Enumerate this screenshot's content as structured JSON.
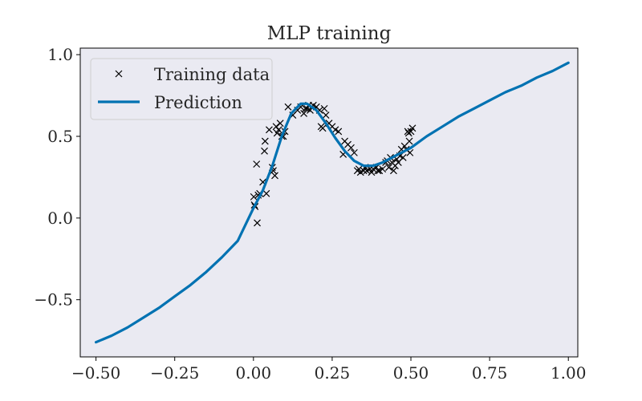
{
  "chart_data": {
    "type": "scatter",
    "title": "MLP training",
    "xlabel": "",
    "ylabel": "",
    "xlim": [
      -0.55,
      1.03
    ],
    "ylim": [
      -0.85,
      1.04
    ],
    "xticks": [
      -0.5,
      -0.25,
      0.0,
      0.25,
      0.5,
      0.75,
      1.0
    ],
    "xtick_labels": [
      "−0.50",
      "−0.25",
      "0.00",
      "0.25",
      "0.50",
      "0.75",
      "1.00"
    ],
    "yticks": [
      -0.5,
      0.0,
      0.5,
      1.0
    ],
    "ytick_labels": [
      "−0.5",
      "0.0",
      "0.5",
      "1.0"
    ],
    "grid": false,
    "legend_position": "top-left",
    "colors": {
      "background": "#eaeaf2",
      "prediction": "#0072b2",
      "training": "#000000"
    },
    "series": [
      {
        "name": "Training data",
        "kind": "scatter",
        "marker": "x",
        "points": [
          [
            0.001,
            0.13
          ],
          [
            0.003,
            0.08
          ],
          [
            0.005,
            0.07
          ],
          [
            0.01,
            0.33
          ],
          [
            0.012,
            -0.03
          ],
          [
            0.015,
            0.14
          ],
          [
            0.02,
            0.15
          ],
          [
            0.03,
            0.22
          ],
          [
            0.035,
            0.41
          ],
          [
            0.037,
            0.47
          ],
          [
            0.041,
            0.15
          ],
          [
            0.05,
            0.54
          ],
          [
            0.06,
            0.31
          ],
          [
            0.063,
            0.29
          ],
          [
            0.068,
            0.26
          ],
          [
            0.072,
            0.56
          ],
          [
            0.075,
            0.52
          ],
          [
            0.08,
            0.54
          ],
          [
            0.085,
            0.58
          ],
          [
            0.09,
            0.5
          ],
          [
            0.095,
            0.5
          ],
          [
            0.1,
            0.53
          ],
          [
            0.11,
            0.68
          ],
          [
            0.125,
            0.63
          ],
          [
            0.14,
            0.66
          ],
          [
            0.15,
            0.68
          ],
          [
            0.16,
            0.64
          ],
          [
            0.165,
            0.67
          ],
          [
            0.17,
            0.67
          ],
          [
            0.175,
            0.69
          ],
          [
            0.18,
            0.66
          ],
          [
            0.185,
            0.68
          ],
          [
            0.19,
            0.69
          ],
          [
            0.2,
            0.68
          ],
          [
            0.21,
            0.66
          ],
          [
            0.215,
            0.56
          ],
          [
            0.22,
            0.55
          ],
          [
            0.225,
            0.67
          ],
          [
            0.23,
            0.63
          ],
          [
            0.24,
            0.58
          ],
          [
            0.25,
            0.56
          ],
          [
            0.26,
            0.54
          ],
          [
            0.27,
            0.53
          ],
          [
            0.285,
            0.39
          ],
          [
            0.29,
            0.47
          ],
          [
            0.3,
            0.45
          ],
          [
            0.31,
            0.43
          ],
          [
            0.32,
            0.4
          ],
          [
            0.33,
            0.29
          ],
          [
            0.335,
            0.3
          ],
          [
            0.34,
            0.28
          ],
          [
            0.35,
            0.29
          ],
          [
            0.355,
            0.31
          ],
          [
            0.36,
            0.29
          ],
          [
            0.37,
            0.3
          ],
          [
            0.375,
            0.28
          ],
          [
            0.38,
            0.3
          ],
          [
            0.39,
            0.31
          ],
          [
            0.395,
            0.29
          ],
          [
            0.4,
            0.29
          ],
          [
            0.41,
            0.3
          ],
          [
            0.42,
            0.34
          ],
          [
            0.425,
            0.35
          ],
          [
            0.43,
            0.31
          ],
          [
            0.435,
            0.37
          ],
          [
            0.44,
            0.34
          ],
          [
            0.445,
            0.29
          ],
          [
            0.45,
            0.32
          ],
          [
            0.455,
            0.36
          ],
          [
            0.46,
            0.34
          ],
          [
            0.465,
            0.38
          ],
          [
            0.47,
            0.42
          ],
          [
            0.475,
            0.37
          ],
          [
            0.48,
            0.44
          ],
          [
            0.485,
            0.42
          ],
          [
            0.49,
            0.53
          ],
          [
            0.493,
            0.52
          ],
          [
            0.495,
            0.47
          ],
          [
            0.497,
            0.4
          ],
          [
            0.5,
            0.53
          ],
          [
            0.505,
            0.55
          ]
        ]
      },
      {
        "name": "Prediction",
        "kind": "line",
        "points": [
          [
            -0.5,
            -0.76
          ],
          [
            -0.45,
            -0.72
          ],
          [
            -0.4,
            -0.67
          ],
          [
            -0.35,
            -0.61
          ],
          [
            -0.3,
            -0.55
          ],
          [
            -0.25,
            -0.48
          ],
          [
            -0.2,
            -0.41
          ],
          [
            -0.15,
            -0.33
          ],
          [
            -0.1,
            -0.24
          ],
          [
            -0.05,
            -0.14
          ],
          [
            0.0,
            0.06
          ],
          [
            0.03,
            0.17
          ],
          [
            0.06,
            0.32
          ],
          [
            0.09,
            0.5
          ],
          [
            0.12,
            0.64
          ],
          [
            0.15,
            0.7
          ],
          [
            0.17,
            0.7
          ],
          [
            0.2,
            0.66
          ],
          [
            0.23,
            0.58
          ],
          [
            0.26,
            0.49
          ],
          [
            0.29,
            0.41
          ],
          [
            0.32,
            0.35
          ],
          [
            0.35,
            0.32
          ],
          [
            0.38,
            0.32
          ],
          [
            0.41,
            0.34
          ],
          [
            0.45,
            0.38
          ],
          [
            0.5,
            0.43
          ],
          [
            0.55,
            0.5
          ],
          [
            0.6,
            0.56
          ],
          [
            0.65,
            0.62
          ],
          [
            0.7,
            0.67
          ],
          [
            0.75,
            0.72
          ],
          [
            0.8,
            0.77
          ],
          [
            0.85,
            0.81
          ],
          [
            0.9,
            0.86
          ],
          [
            0.95,
            0.9
          ],
          [
            1.0,
            0.95
          ]
        ]
      }
    ]
  }
}
